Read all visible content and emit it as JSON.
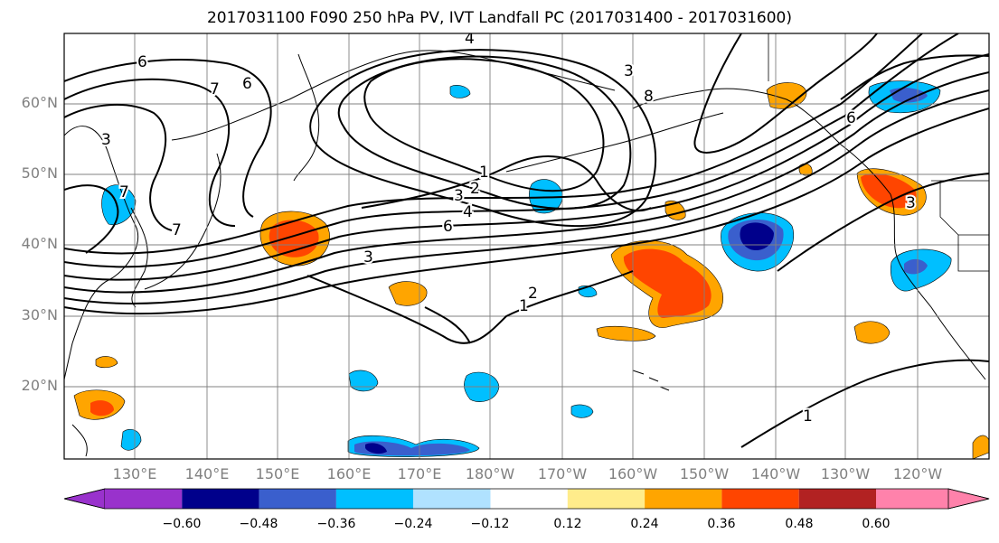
{
  "title": "2017031100 F090 250 hPa PV, IVT Landfall PC (2017031400 - 2017031600)",
  "lat_labels": [
    "60°N",
    "50°N",
    "40°N",
    "30°N",
    "20°N"
  ],
  "lon_labels": [
    "130°E",
    "140°E",
    "150°E",
    "160°E",
    "170°E",
    "180°W",
    "170°W",
    "160°W",
    "150°W",
    "140°W",
    "130°W",
    "120°W"
  ],
  "contour_labels": [
    "6",
    "7",
    "6",
    "4",
    "3",
    "8",
    "6",
    "3",
    "7",
    "1",
    "2",
    "3",
    "4",
    "6",
    "3",
    "2",
    "1",
    "1",
    "3",
    "7"
  ],
  "colorbar": {
    "ticks": [
      "−0.60",
      "−0.48",
      "−0.36",
      "−0.24",
      "−0.12",
      "0.12",
      "0.24",
      "0.36",
      "0.48",
      "0.60"
    ],
    "colors": [
      "#9932cc",
      "#00008b",
      "#3a5fcd",
      "#00bfff",
      "#b0e2ff",
      "#ffffff",
      "#ffec8b",
      "#ffa500",
      "#ff4500",
      "#b22222",
      "#ff82ab"
    ]
  },
  "fill_colors": {
    "neg_strong": "#00008b",
    "neg_mid": "#3a5fcd",
    "neg_light": "#00bfff",
    "pos_light": "#ffa500",
    "pos_mid": "#ff4500"
  }
}
